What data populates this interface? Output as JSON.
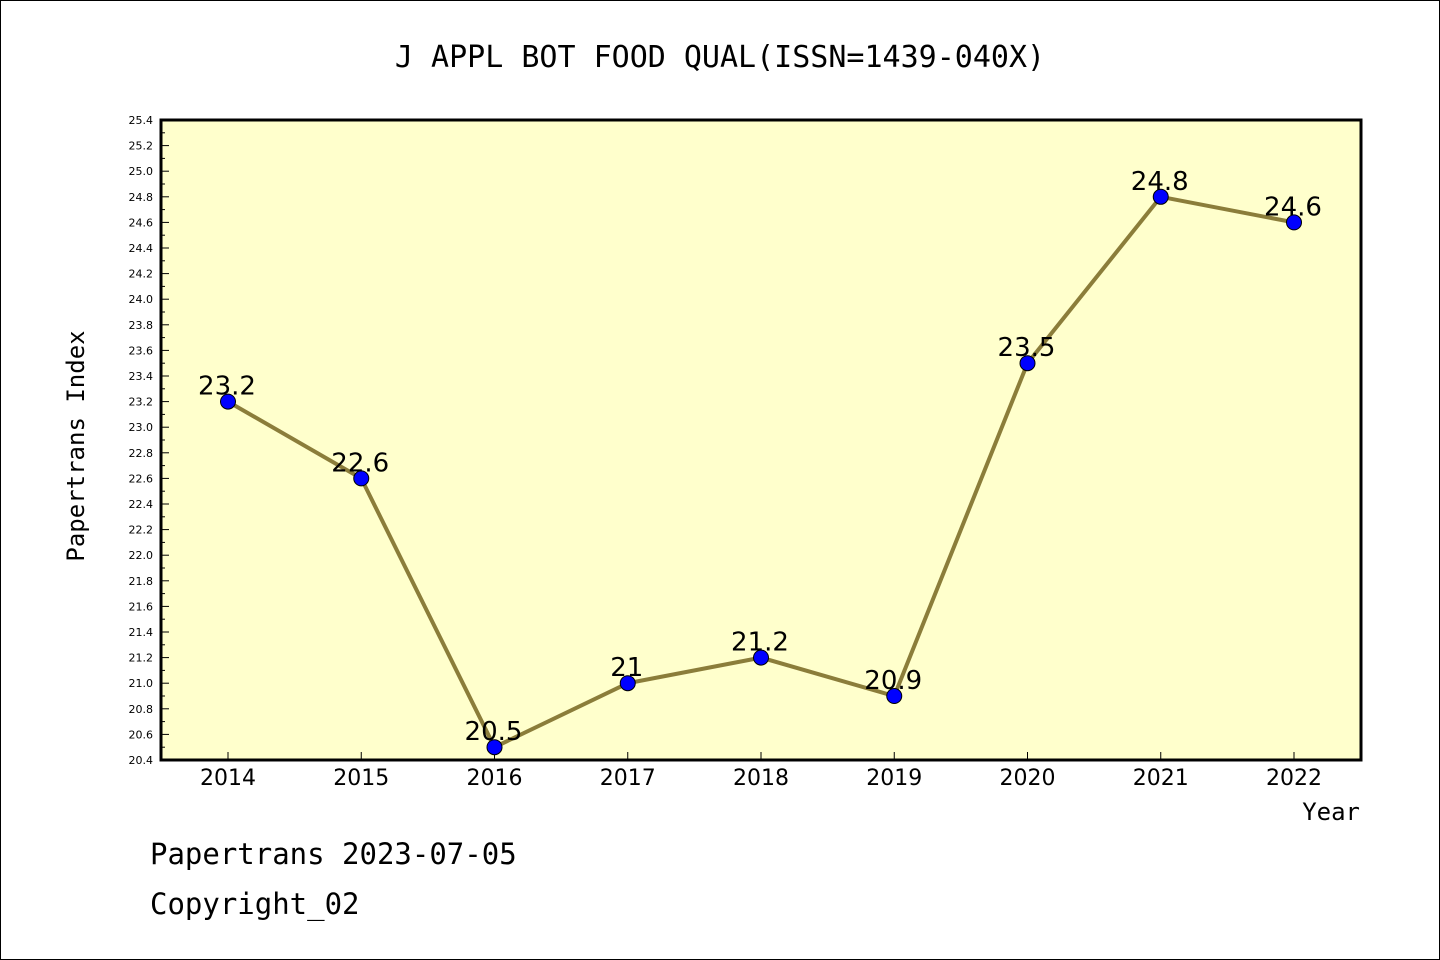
{
  "chart_data": {
    "type": "line",
    "title": "J APPL BOT FOOD QUAL(ISSN=1439-040X)",
    "xlabel": "Year",
    "ylabel": "Papertrans Index",
    "categories": [
      "2014",
      "2015",
      "2016",
      "2017",
      "2018",
      "2019",
      "2020",
      "2021",
      "2022"
    ],
    "series": [
      {
        "values": [
          23.2,
          22.6,
          20.5,
          21.0,
          21.2,
          20.9,
          23.5,
          24.8,
          24.6
        ],
        "labels": [
          "23.2",
          "22.6",
          "20.5",
          "21",
          "21.2",
          "20.9",
          "23.5",
          "24.8",
          "24.6"
        ]
      }
    ],
    "ylim": [
      20.4,
      25.4
    ],
    "ytick_step": 0.2,
    "yticks": [
      "20.4",
      "20.6",
      "20.8",
      "21.0",
      "21.2",
      "21.4",
      "21.6",
      "21.8",
      "22.0",
      "22.2",
      "22.4",
      "22.6",
      "22.8",
      "23.0",
      "23.2",
      "23.4",
      "23.6",
      "23.8",
      "24.0",
      "24.2",
      "24.4",
      "24.6",
      "24.8",
      "25.0",
      "25.2",
      "25.4"
    ],
    "grid": false,
    "legend": "none",
    "colors": {
      "plot_background": "#FFFFCC",
      "line": "#8B7D3A",
      "marker": "#0000FF"
    }
  },
  "footer": {
    "line1": "Papertrans 2023-07-05",
    "line2": "Copyright_02"
  }
}
